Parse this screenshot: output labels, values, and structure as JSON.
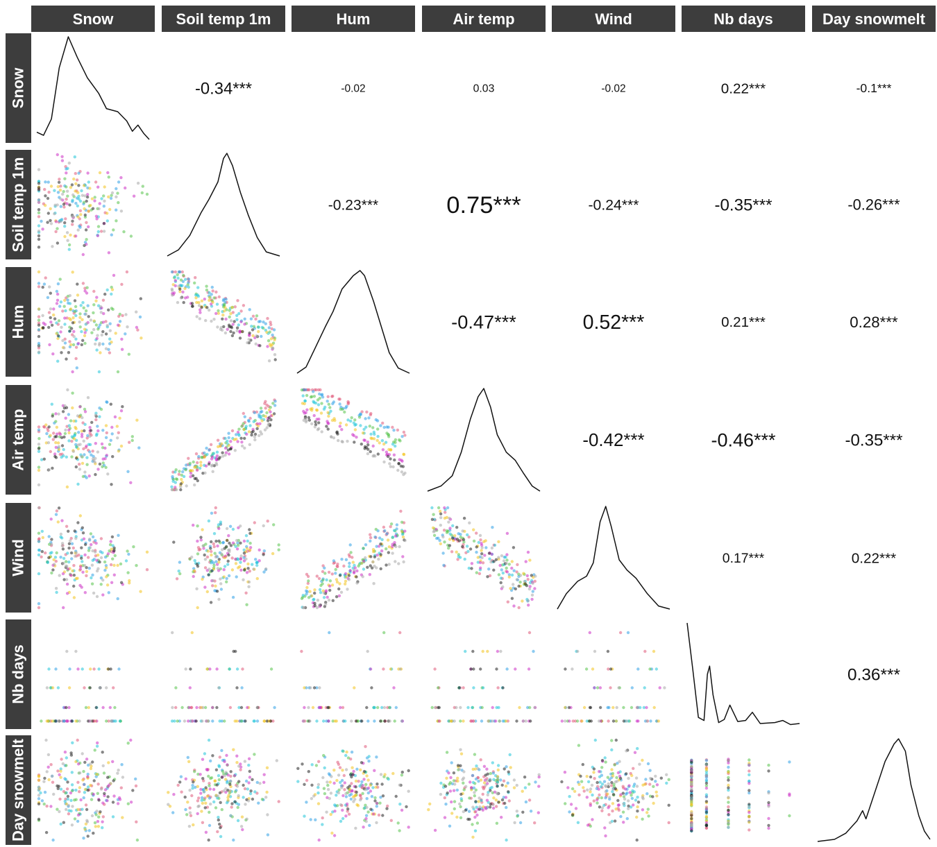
{
  "chart_data": {
    "type": "scatter",
    "variables": [
      "Snow",
      "Soil temp 1m",
      "Hum",
      "Air temp",
      "Wind",
      "Nb days",
      "Day snowmelt"
    ],
    "correlations": [
      {
        "row": "Snow",
        "col": "Soil temp 1m",
        "value": -0.34,
        "label": "-0.34***"
      },
      {
        "row": "Snow",
        "col": "Hum",
        "value": -0.02,
        "label": "-0.02"
      },
      {
        "row": "Snow",
        "col": "Air temp",
        "value": 0.03,
        "label": "0.03"
      },
      {
        "row": "Snow",
        "col": "Wind",
        "value": -0.02,
        "label": "-0.02"
      },
      {
        "row": "Snow",
        "col": "Nb days",
        "value": 0.22,
        "label": "0.22***"
      },
      {
        "row": "Snow",
        "col": "Day snowmelt",
        "value": -0.1,
        "label": "-0.1***"
      },
      {
        "row": "Soil temp 1m",
        "col": "Hum",
        "value": -0.23,
        "label": "-0.23***"
      },
      {
        "row": "Soil temp 1m",
        "col": "Air temp",
        "value": 0.75,
        "label": "0.75***"
      },
      {
        "row": "Soil temp 1m",
        "col": "Wind",
        "value": -0.24,
        "label": "-0.24***"
      },
      {
        "row": "Soil temp 1m",
        "col": "Nb days",
        "value": -0.35,
        "label": "-0.35***"
      },
      {
        "row": "Soil temp 1m",
        "col": "Day snowmelt",
        "value": -0.26,
        "label": "-0.26***"
      },
      {
        "row": "Hum",
        "col": "Air temp",
        "value": -0.47,
        "label": "-0.47***"
      },
      {
        "row": "Hum",
        "col": "Wind",
        "value": 0.52,
        "label": "0.52***"
      },
      {
        "row": "Hum",
        "col": "Nb days",
        "value": 0.21,
        "label": "0.21***"
      },
      {
        "row": "Hum",
        "col": "Day snowmelt",
        "value": 0.28,
        "label": "0.28***"
      },
      {
        "row": "Air temp",
        "col": "Wind",
        "value": -0.42,
        "label": "-0.42***"
      },
      {
        "row": "Air temp",
        "col": "Nb days",
        "value": -0.46,
        "label": "-0.46***"
      },
      {
        "row": "Air temp",
        "col": "Day snowmelt",
        "value": -0.35,
        "label": "-0.35***"
      },
      {
        "row": "Wind",
        "col": "Nb days",
        "value": 0.17,
        "label": "0.17***"
      },
      {
        "row": "Wind",
        "col": "Day snowmelt",
        "value": 0.22,
        "label": "0.22***"
      },
      {
        "row": "Nb days",
        "col": "Day snowmelt",
        "value": 0.36,
        "label": "0.36***"
      }
    ],
    "densities": {
      "Snow": [
        [
          0,
          0.07
        ],
        [
          0.06,
          0.04
        ],
        [
          0.13,
          0.2
        ],
        [
          0.2,
          0.7
        ],
        [
          0.28,
          1.0
        ],
        [
          0.36,
          0.8
        ],
        [
          0.45,
          0.6
        ],
        [
          0.55,
          0.45
        ],
        [
          0.62,
          0.3
        ],
        [
          0.72,
          0.27
        ],
        [
          0.8,
          0.18
        ],
        [
          0.85,
          0.08
        ],
        [
          0.9,
          0.14
        ],
        [
          0.95,
          0.06
        ],
        [
          1.0,
          0.0
        ]
      ],
      "Soil temp 1m": [
        [
          0,
          0.0
        ],
        [
          0.1,
          0.06
        ],
        [
          0.2,
          0.2
        ],
        [
          0.3,
          0.42
        ],
        [
          0.37,
          0.55
        ],
        [
          0.45,
          0.72
        ],
        [
          0.5,
          0.95
        ],
        [
          0.53,
          1.0
        ],
        [
          0.58,
          0.88
        ],
        [
          0.65,
          0.62
        ],
        [
          0.72,
          0.4
        ],
        [
          0.8,
          0.18
        ],
        [
          0.88,
          0.04
        ],
        [
          1.0,
          0.0
        ]
      ],
      "Hum": [
        [
          0,
          0.0
        ],
        [
          0.08,
          0.06
        ],
        [
          0.15,
          0.22
        ],
        [
          0.25,
          0.45
        ],
        [
          0.32,
          0.6
        ],
        [
          0.4,
          0.82
        ],
        [
          0.5,
          0.95
        ],
        [
          0.56,
          1.0
        ],
        [
          0.6,
          0.95
        ],
        [
          0.68,
          0.7
        ],
        [
          0.75,
          0.45
        ],
        [
          0.82,
          0.2
        ],
        [
          0.9,
          0.05
        ],
        [
          1.0,
          0.0
        ]
      ],
      "Air temp": [
        [
          0,
          0.0
        ],
        [
          0.12,
          0.05
        ],
        [
          0.22,
          0.15
        ],
        [
          0.3,
          0.38
        ],
        [
          0.38,
          0.7
        ],
        [
          0.45,
          0.92
        ],
        [
          0.5,
          1.0
        ],
        [
          0.56,
          0.82
        ],
        [
          0.62,
          0.55
        ],
        [
          0.7,
          0.38
        ],
        [
          0.78,
          0.3
        ],
        [
          0.85,
          0.18
        ],
        [
          0.93,
          0.05
        ],
        [
          1.0,
          0.0
        ]
      ],
      "Wind": [
        [
          0,
          0.0
        ],
        [
          0.08,
          0.15
        ],
        [
          0.18,
          0.27
        ],
        [
          0.26,
          0.32
        ],
        [
          0.32,
          0.45
        ],
        [
          0.38,
          0.85
        ],
        [
          0.43,
          1.0
        ],
        [
          0.48,
          0.8
        ],
        [
          0.55,
          0.48
        ],
        [
          0.62,
          0.38
        ],
        [
          0.7,
          0.3
        ],
        [
          0.8,
          0.15
        ],
        [
          0.9,
          0.03
        ],
        [
          1.0,
          0.0
        ]
      ],
      "Nb days": [
        [
          0,
          1.0
        ],
        [
          0.05,
          0.55
        ],
        [
          0.1,
          0.08
        ],
        [
          0.15,
          0.05
        ],
        [
          0.18,
          0.5
        ],
        [
          0.2,
          0.58
        ],
        [
          0.23,
          0.3
        ],
        [
          0.28,
          0.03
        ],
        [
          0.33,
          0.06
        ],
        [
          0.38,
          0.2
        ],
        [
          0.45,
          0.04
        ],
        [
          0.52,
          0.05
        ],
        [
          0.58,
          0.13
        ],
        [
          0.65,
          0.02
        ],
        [
          0.78,
          0.03
        ],
        [
          0.85,
          0.05
        ],
        [
          0.92,
          0.01
        ],
        [
          1.0,
          0.02
        ]
      ],
      "Day snowmelt": [
        [
          0,
          0.0
        ],
        [
          0.15,
          0.02
        ],
        [
          0.25,
          0.08
        ],
        [
          0.35,
          0.2
        ],
        [
          0.4,
          0.3
        ],
        [
          0.43,
          0.22
        ],
        [
          0.5,
          0.45
        ],
        [
          0.6,
          0.78
        ],
        [
          0.68,
          0.95
        ],
        [
          0.72,
          1.0
        ],
        [
          0.78,
          0.88
        ],
        [
          0.83,
          0.55
        ],
        [
          0.9,
          0.25
        ],
        [
          0.95,
          0.1
        ],
        [
          1.0,
          0.02
        ]
      ]
    },
    "group_colors": [
      "#e05a7a",
      "#2fa0e6",
      "#55c24a",
      "#1fc4d8",
      "#f2c21b",
      "#cc2fc4",
      "#222222",
      "#a8a8a8"
    ],
    "strip_background": "#3d3d3d",
    "strip_text_color": "#ffffff"
  }
}
